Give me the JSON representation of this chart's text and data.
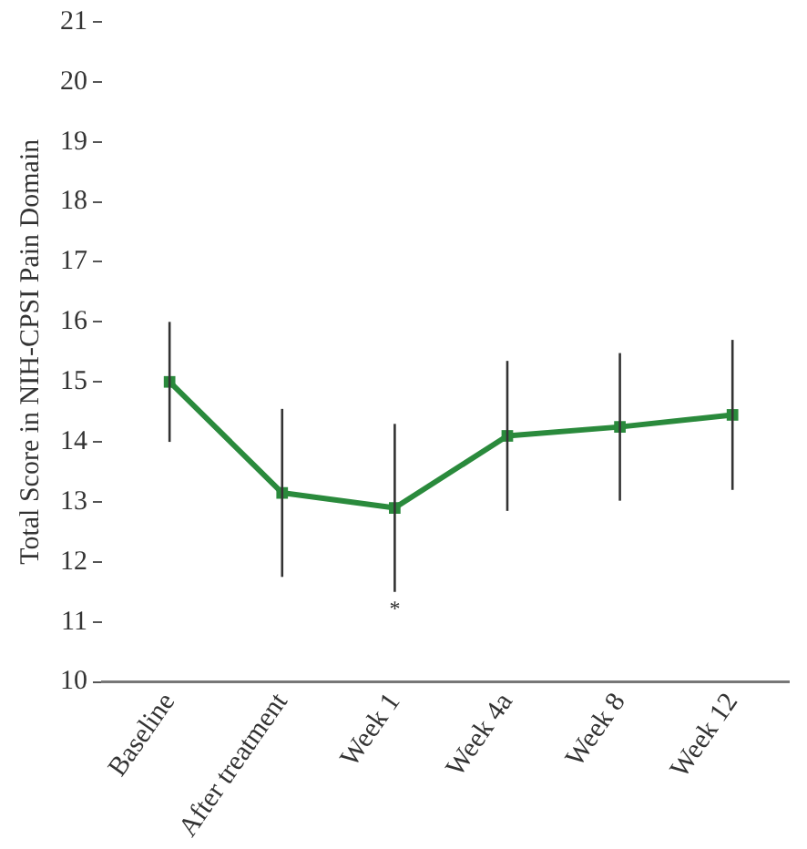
{
  "chart_data": {
    "type": "line",
    "ylabel": "Total Score in NIH-CPSI Pain Domain",
    "categories": [
      "Baseline",
      "After treatment",
      "Week 1",
      "Week 4a",
      "Week 8",
      "Week 12"
    ],
    "series": [
      {
        "color": "#2a8a3c",
        "values": [
          15.0,
          13.15,
          12.9,
          14.1,
          14.25,
          14.45
        ],
        "errors": [
          1.0,
          1.4,
          1.4,
          1.25,
          1.23,
          1.25
        ]
      }
    ],
    "ylim": [
      10,
      21
    ],
    "yticks": [
      10,
      11,
      12,
      13,
      14,
      15,
      16,
      17,
      18,
      19,
      20,
      21
    ],
    "annotations": [
      "*"
    ],
    "marker": "square",
    "line_style": "solid",
    "grid": false,
    "legend": false
  }
}
